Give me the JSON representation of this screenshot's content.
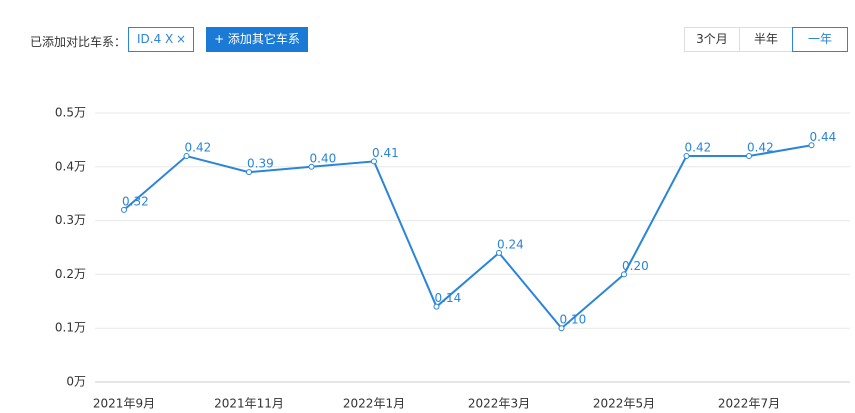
{
  "toolbar": {
    "label": "已添加对比车系：",
    "tag": "ID.4 X",
    "tag_close": "×",
    "add_button": "+ 添加其它车系",
    "ranges": [
      "3个月",
      "半年",
      "一年"
    ],
    "active_range": 2
  },
  "chart_data": {
    "type": "line",
    "categories": [
      "2021年9月",
      null,
      "2021年11月",
      null,
      "2022年1月",
      null,
      "2022年3月",
      null,
      "2022年5月",
      null,
      "2022年7月",
      null
    ],
    "values": [
      0.32,
      0.42,
      0.39,
      0.4,
      0.41,
      0.14,
      0.24,
      0.1,
      0.2,
      0.42,
      0.42,
      0.44
    ],
    "value_labels": [
      "0.32",
      "0.42",
      "0.39",
      "0.40",
      "0.41",
      "0.14",
      "0.24",
      "0.10",
      "0.20",
      "0.42",
      "0.42",
      "0.44"
    ],
    "color": "#2b85d8",
    "ylim": [
      0,
      0.5
    ],
    "yticks": [
      {
        "value": 0,
        "label": "0万"
      },
      {
        "value": 0.1,
        "label": "0.1万"
      },
      {
        "value": 0.2,
        "label": "0.2万"
      },
      {
        "value": 0.3,
        "label": "0.3万"
      },
      {
        "value": 0.4,
        "label": "0.4万"
      },
      {
        "value": 0.5,
        "label": "0.5万"
      }
    ],
    "grid": true
  }
}
